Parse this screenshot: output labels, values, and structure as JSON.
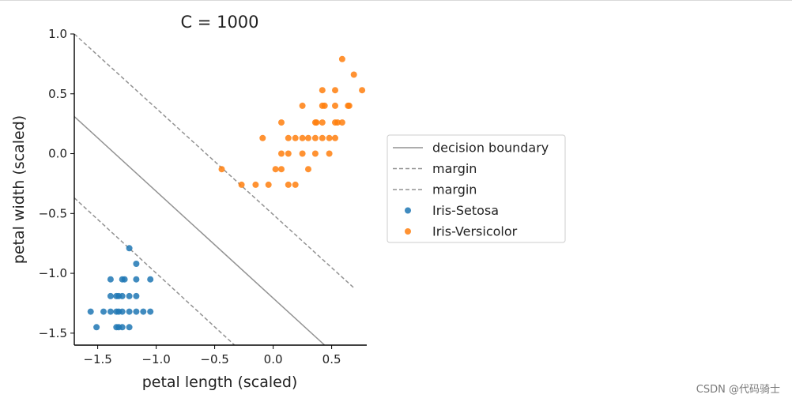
{
  "chart_data": {
    "type": "scatter",
    "title": "C = 1000",
    "xlabel": "petal length (scaled)",
    "ylabel": "petal width (scaled)",
    "xlim": [
      -1.7,
      0.8
    ],
    "ylim": [
      -1.6,
      1.0
    ],
    "xticks": [
      -1.5,
      -1.0,
      -0.5,
      0.0,
      0.5
    ],
    "xtick_labels": [
      "−1.5",
      "−1.0",
      "−0.5",
      "0.0",
      "0.5"
    ],
    "yticks": [
      -1.5,
      -1.0,
      -0.5,
      0.0,
      0.5,
      1.0
    ],
    "ytick_labels": [
      "−1.5",
      "−1.0",
      "−0.5",
      "0.0",
      "0.5",
      "1.0"
    ],
    "grid": false,
    "legend_position": "right, outside plot",
    "lines": [
      {
        "name": "decision boundary",
        "style": "solid",
        "color": "#929292",
        "points": [
          [
            -1.7,
            0.31
          ],
          [
            0.44,
            -1.6
          ]
        ]
      },
      {
        "name": "margin",
        "style": "dashed",
        "color": "#929292",
        "points": [
          [
            -1.7,
            1.0
          ],
          [
            0.7,
            -1.13
          ]
        ]
      },
      {
        "name": "margin",
        "style": "dashed",
        "color": "#929292",
        "points": [
          [
            -1.7,
            -0.37
          ],
          [
            -0.33,
            -1.6
          ]
        ]
      }
    ],
    "series": [
      {
        "name": "Iris-Setosa",
        "color": "#1f77b4",
        "points": [
          [
            -1.23,
            -0.79
          ],
          [
            -1.17,
            -0.92
          ],
          [
            -1.39,
            -1.05
          ],
          [
            -1.29,
            -1.05
          ],
          [
            -1.27,
            -1.05
          ],
          [
            -1.17,
            -1.05
          ],
          [
            -1.05,
            -1.05
          ],
          [
            -1.39,
            -1.19
          ],
          [
            -1.34,
            -1.19
          ],
          [
            -1.32,
            -1.19
          ],
          [
            -1.29,
            -1.19
          ],
          [
            -1.23,
            -1.19
          ],
          [
            -1.17,
            -1.19
          ],
          [
            -1.56,
            -1.32
          ],
          [
            -1.45,
            -1.32
          ],
          [
            -1.39,
            -1.32
          ],
          [
            -1.34,
            -1.32
          ],
          [
            -1.32,
            -1.32
          ],
          [
            -1.29,
            -1.32
          ],
          [
            -1.23,
            -1.32
          ],
          [
            -1.17,
            -1.32
          ],
          [
            -1.11,
            -1.32
          ],
          [
            -1.05,
            -1.32
          ],
          [
            -1.51,
            -1.45
          ],
          [
            -1.34,
            -1.45
          ],
          [
            -1.32,
            -1.45
          ],
          [
            -1.29,
            -1.45
          ],
          [
            -1.23,
            -1.45
          ]
        ]
      },
      {
        "name": "Iris-Versicolor",
        "color": "#ff7f0e",
        "points": [
          [
            0.59,
            0.79
          ],
          [
            0.69,
            0.66
          ],
          [
            0.42,
            0.53
          ],
          [
            0.53,
            0.53
          ],
          [
            0.76,
            0.53
          ],
          [
            0.25,
            0.4
          ],
          [
            0.42,
            0.4
          ],
          [
            0.44,
            0.4
          ],
          [
            0.53,
            0.4
          ],
          [
            0.64,
            0.4
          ],
          [
            0.65,
            0.4
          ],
          [
            0.07,
            0.26
          ],
          [
            0.36,
            0.26
          ],
          [
            0.37,
            0.26
          ],
          [
            0.42,
            0.26
          ],
          [
            0.53,
            0.26
          ],
          [
            0.55,
            0.26
          ],
          [
            0.59,
            0.26
          ],
          [
            -0.09,
            0.13
          ],
          [
            0.13,
            0.13
          ],
          [
            0.19,
            0.13
          ],
          [
            0.25,
            0.13
          ],
          [
            0.3,
            0.13
          ],
          [
            0.36,
            0.13
          ],
          [
            0.42,
            0.13
          ],
          [
            0.48,
            0.13
          ],
          [
            0.53,
            0.13
          ],
          [
            0.07,
            0.0
          ],
          [
            0.13,
            0.0
          ],
          [
            0.25,
            0.0
          ],
          [
            0.36,
            0.0
          ],
          [
            0.48,
            0.0
          ],
          [
            0.02,
            -0.13
          ],
          [
            0.07,
            -0.13
          ],
          [
            0.3,
            -0.13
          ],
          [
            -0.44,
            -0.13
          ],
          [
            -0.27,
            -0.26
          ],
          [
            -0.15,
            -0.26
          ],
          [
            -0.04,
            -0.26
          ],
          [
            0.13,
            -0.26
          ],
          [
            0.19,
            -0.26
          ]
        ]
      }
    ]
  },
  "legend": {
    "entries": [
      {
        "label": "decision boundary",
        "kind": "solid-line",
        "color": "#929292"
      },
      {
        "label": "margin",
        "kind": "dashed-line",
        "color": "#929292"
      },
      {
        "label": "margin",
        "kind": "dashed-line",
        "color": "#929292"
      },
      {
        "label": "Iris-Setosa",
        "kind": "marker",
        "color": "#1f77b4"
      },
      {
        "label": "Iris-Versicolor",
        "kind": "marker",
        "color": "#ff7f0e"
      }
    ]
  },
  "watermark": "CSDN @代码骑士"
}
